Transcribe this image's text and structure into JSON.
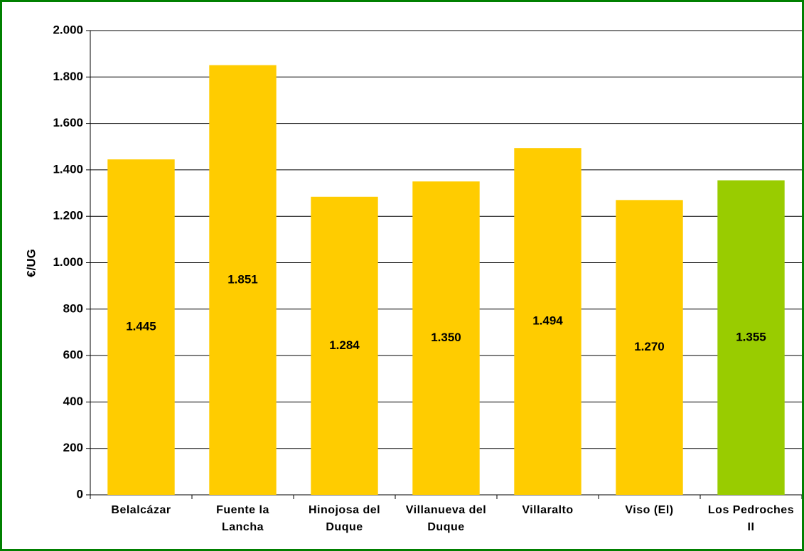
{
  "chart_data": {
    "type": "bar",
    "y_label": "€/UG",
    "categories": [
      "Belalcázar",
      "Fuente la Lancha",
      "Hinojosa del Duque",
      "Villanueva del Duque",
      "Villaralto",
      "Viso (El)",
      "Los Pedroches II"
    ],
    "values": [
      1445,
      1851,
      1284,
      1350,
      1494,
      1270,
      1355
    ],
    "value_labels": [
      "1.445",
      "1.851",
      "1.284",
      "1.350",
      "1.494",
      "1.270",
      "1.355"
    ],
    "colors": [
      "#ffcc00",
      "#ffcc00",
      "#ffcc00",
      "#ffcc00",
      "#ffcc00",
      "#ffcc00",
      "#99cc00"
    ],
    "ylim": [
      0,
      2000
    ],
    "yticks": [
      0,
      200,
      400,
      600,
      800,
      {
        "value": 1000,
        "label": "1.000"
      },
      {
        "value": 1200,
        "label": "1.200"
      },
      {
        "value": 1400,
        "label": "1.400"
      },
      {
        "value": 1600,
        "label": "1.600"
      },
      {
        "value": 1800,
        "label": "1.800"
      },
      {
        "value": 2000,
        "label": "2.000"
      }
    ],
    "grid": true
  }
}
